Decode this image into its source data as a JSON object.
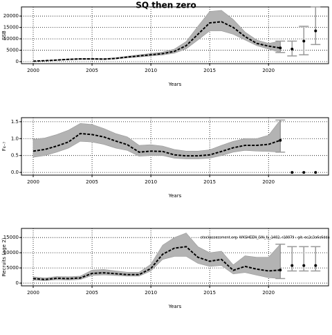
{
  "title": "SQ then zero",
  "chart_data": [
    {
      "type": "line",
      "ylabel": "SSB",
      "xlabel": "Years",
      "x": [
        2000,
        2001,
        2002,
        2003,
        2004,
        2005,
        2006,
        2007,
        2008,
        2009,
        2010,
        2011,
        2012,
        2013,
        2014,
        2015,
        2016,
        2017,
        2018,
        2019,
        2020,
        2021
      ],
      "values": [
        200,
        400,
        700,
        1000,
        1200,
        1200,
        1100,
        1400,
        2000,
        2500,
        3000,
        3500,
        4500,
        7000,
        12000,
        17000,
        17500,
        15000,
        11000,
        8000,
        6800,
        6000
      ],
      "lower": [
        150,
        300,
        550,
        800,
        950,
        950,
        900,
        1150,
        1650,
        2050,
        2500,
        2900,
        3700,
        5600,
        9500,
        13500,
        13500,
        12000,
        9500,
        7000,
        5500,
        4000
      ],
      "upper": [
        250,
        500,
        850,
        1200,
        1450,
        1450,
        1350,
        1700,
        2400,
        3000,
        3600,
        4200,
        5500,
        8800,
        15500,
        22000,
        22500,
        18500,
        13000,
        9500,
        8000,
        9000
      ],
      "proj_x": [
        2022,
        2023,
        2024
      ],
      "proj_values": [
        5500,
        9000,
        13500
      ],
      "proj_lower": [
        2500,
        3000,
        7500
      ],
      "proj_upper": [
        9000,
        15500,
        24000
      ],
      "xlim": [
        1999,
        2025.1
      ],
      "ylim": [
        -900,
        24000
      ],
      "xticks": [
        2000,
        2005,
        2010,
        2015,
        2020
      ],
      "yticks": [
        0,
        5000,
        10000,
        15000,
        20000
      ],
      "grid": true
    },
    {
      "type": "line",
      "ylabel": "F₄₋₇",
      "xlabel": "Years",
      "x": [
        2000,
        2001,
        2002,
        2003,
        2004,
        2005,
        2006,
        2007,
        2008,
        2009,
        2010,
        2011,
        2012,
        2013,
        2014,
        2015,
        2016,
        2017,
        2018,
        2019,
        2020,
        2021
      ],
      "values": [
        0.63,
        0.68,
        0.78,
        0.9,
        1.15,
        1.12,
        1.05,
        0.93,
        0.82,
        0.6,
        0.63,
        0.62,
        0.52,
        0.49,
        0.49,
        0.52,
        0.62,
        0.73,
        0.8,
        0.8,
        0.83,
        0.95
      ],
      "lower": [
        0.45,
        0.5,
        0.6,
        0.72,
        0.92,
        0.9,
        0.83,
        0.72,
        0.65,
        0.48,
        0.5,
        0.5,
        0.42,
        0.4,
        0.4,
        0.42,
        0.5,
        0.6,
        0.65,
        0.63,
        0.62,
        0.6
      ],
      "upper": [
        0.98,
        1.02,
        1.12,
        1.25,
        1.45,
        1.42,
        1.3,
        1.15,
        1.05,
        0.8,
        0.82,
        0.78,
        0.68,
        0.63,
        0.63,
        0.67,
        0.8,
        0.92,
        1.0,
        1.0,
        1.1,
        1.55
      ],
      "proj_x": [
        2022,
        2023,
        2024
      ],
      "proj_values": [
        0,
        0,
        0
      ],
      "xlim": [
        1999,
        2025.1
      ],
      "ylim": [
        -0.08,
        1.62
      ],
      "xticks": [
        2000,
        2005,
        2010,
        2015,
        2020
      ],
      "yticks": [
        {
          "value": 0,
          "label": "0.0"
        },
        {
          "value": 0.5,
          "label": "0.5"
        },
        {
          "value": 1,
          "label": "1.0"
        },
        {
          "value": 1.5,
          "label": "1.5"
        }
      ],
      "grid": true
    },
    {
      "type": "line",
      "ylabel": "Recruits (age 2)",
      "xlabel": "Years",
      "annotation": "stockassessment.org: WKSHEEN_SIN_fy_1482, r18879 : git: ec2c3a6c6dda",
      "x": [
        2000,
        2001,
        2002,
        2003,
        2004,
        2005,
        2006,
        2007,
        2008,
        2009,
        2010,
        2011,
        2012,
        2013,
        2014,
        2015,
        2016,
        2017,
        2018,
        2019,
        2020,
        2021
      ],
      "values": [
        1500,
        1200,
        1600,
        1500,
        1700,
        3200,
        3400,
        3100,
        2800,
        2800,
        4800,
        9500,
        11500,
        12000,
        8500,
        7200,
        7800,
        4200,
        5500,
        4600,
        4000,
        4300
      ],
      "lower": [
        1000,
        800,
        1100,
        1000,
        1200,
        2500,
        2700,
        2500,
        2300,
        2300,
        4000,
        7800,
        8800,
        8800,
        6500,
        5500,
        5800,
        3000,
        3500,
        2600,
        1800,
        1500
      ],
      "upper": [
        2100,
        1700,
        2200,
        2100,
        2300,
        4300,
        4500,
        4000,
        3600,
        3600,
        6200,
        12500,
        15000,
        16500,
        12000,
        10000,
        10500,
        6000,
        9000,
        8500,
        8500,
        12800
      ],
      "proj_x": [
        2022,
        2023,
        2024
      ],
      "proj_values": [
        5800,
        5800,
        5800
      ],
      "proj_lower": [
        4000,
        4000,
        4000
      ],
      "proj_upper": [
        12000,
        12000,
        12000
      ],
      "xlim": [
        1999,
        2025.1
      ],
      "ylim": [
        -900,
        18000
      ],
      "xticks": [
        2000,
        2005,
        2010,
        2015,
        2020
      ],
      "yticks": [
        0,
        5000,
        10000,
        15000
      ],
      "grid": true
    }
  ]
}
